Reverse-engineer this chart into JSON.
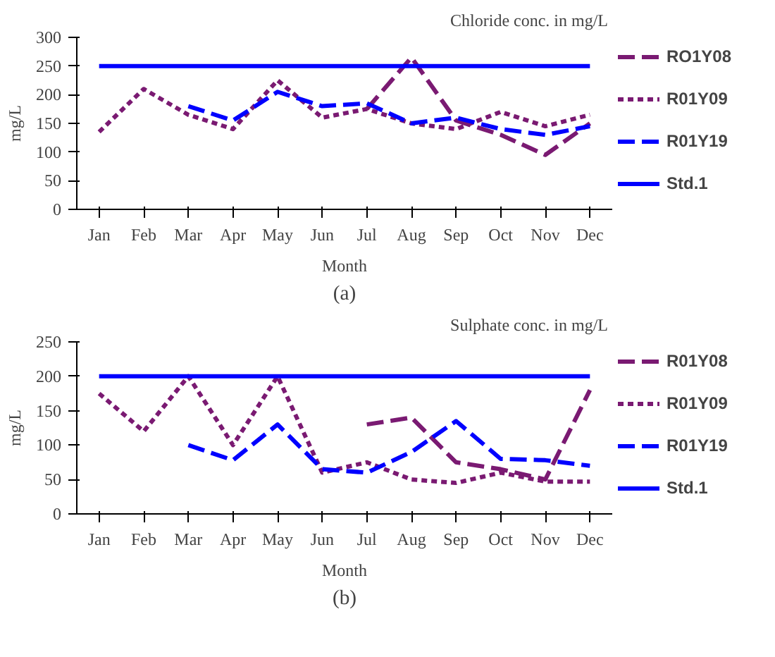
{
  "chart_data": [
    {
      "type": "line",
      "title": "Chloride  conc. in mg/L",
      "xlabel": "Month",
      "ylabel": "mg/L",
      "categories": [
        "Jan",
        "Feb",
        "Mar",
        "Apr",
        "May",
        "Jun",
        "Jul",
        "Aug",
        "Sep",
        "Oct",
        "Nov",
        "Dec"
      ],
      "series": [
        {
          "name": "RO1Y08",
          "color": "#7a1a72",
          "line_style": "dashed",
          "values": [
            null,
            null,
            null,
            null,
            null,
            null,
            175,
            265,
            155,
            130,
            95,
            150
          ]
        },
        {
          "name": "R01Y09",
          "color": "#7a1a72",
          "line_style": "dotted",
          "values": [
            135,
            210,
            165,
            140,
            225,
            160,
            175,
            150,
            140,
            170,
            145,
            165
          ]
        },
        {
          "name": "R01Y19",
          "color": "#0000ff",
          "line_style": "dashed",
          "values": [
            null,
            null,
            180,
            155,
            205,
            180,
            185,
            150,
            160,
            140,
            130,
            145
          ]
        },
        {
          "name": "Std.1",
          "color": "#0000ff",
          "line_style": "solid",
          "values": [
            250,
            250,
            250,
            250,
            250,
            250,
            250,
            250,
            250,
            250,
            250,
            250
          ]
        }
      ],
      "ylim": [
        0,
        300
      ],
      "yticks": [
        0,
        50,
        100,
        150,
        200,
        250,
        300
      ],
      "grid": false,
      "legend": "right",
      "marker": "none",
      "annotations": [
        "(a)"
      ]
    },
    {
      "type": "line",
      "title": "Sulphate  conc. in mg/L",
      "xlabel": "Month",
      "ylabel": "mg/L",
      "categories": [
        "Jan",
        "Feb",
        "Mar",
        "Apr",
        "May",
        "Jun",
        "Jul",
        "Aug",
        "Sep",
        "Oct",
        "Nov",
        "Dec"
      ],
      "series": [
        {
          "name": "R01Y08",
          "color": "#7a1a72",
          "line_style": "dashed",
          "values": [
            null,
            null,
            null,
            null,
            null,
            null,
            130,
            140,
            75,
            65,
            50,
            180
          ]
        },
        {
          "name": "R01Y09",
          "color": "#7a1a72",
          "line_style": "dotted",
          "values": [
            175,
            120,
            200,
            100,
            200,
            60,
            75,
            50,
            45,
            60,
            47,
            47
          ]
        },
        {
          "name": "R01Y19",
          "color": "#0000ff",
          "line_style": "dashed",
          "values": [
            null,
            null,
            100,
            78,
            130,
            65,
            60,
            90,
            135,
            80,
            78,
            70
          ]
        },
        {
          "name": "Std.1",
          "color": "#0000ff",
          "line_style": "solid",
          "values": [
            200,
            200,
            200,
            200,
            200,
            200,
            200,
            200,
            200,
            200,
            200,
            200
          ]
        }
      ],
      "ylim": [
        0,
        250
      ],
      "yticks": [
        0,
        50,
        100,
        150,
        200,
        250
      ],
      "grid": false,
      "legend": "right",
      "marker": "none",
      "annotations": [
        "(b)"
      ]
    }
  ]
}
